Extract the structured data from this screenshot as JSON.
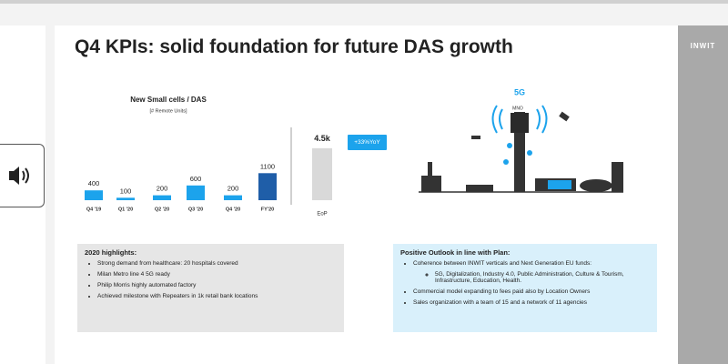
{
  "slide": {
    "title": "Q4 KPIs: solid foundation for future DAS growth",
    "brand": "INWIT"
  },
  "chart": {
    "type": "bar",
    "title": "New Small cells / DAS",
    "subtitle": "[# Remote Units]",
    "categories": [
      "Q4 '19",
      "Q1 '20",
      "Q2 '20",
      "Q3 '20",
      "Q4 '20",
      "FY'20"
    ],
    "values": [
      400,
      100,
      200,
      600,
      200,
      1100
    ],
    "colors": [
      "#1ca3ec",
      "#1ca3ec",
      "#1ca3ec",
      "#1ca3ec",
      "#1ca3ec",
      "#1f5ea8"
    ]
  },
  "eop": {
    "label": "EoP",
    "value": 4500,
    "value_label": "4.5k",
    "color": "#d9d9d9",
    "badge": "+33%YoY"
  },
  "illustration": {
    "label": "5G",
    "sublabel": "MNO"
  },
  "highlights": {
    "title": "2020 highlights:",
    "items": [
      "Strong demand from healthcare: 20 hospitals covered",
      "Milan Metro line 4 5G ready",
      "Philip Morris highly automated factory",
      "Achieved milestone with Repeaters in 1k retail bank locations"
    ]
  },
  "outlook": {
    "title": "Positive Outlook in line with Plan:",
    "items": [
      {
        "text": "Coherence between INWIT verticals and Next Generation EU funds:",
        "subitems": [
          "5G, Digitalization, Industry 4.0, Public Administration, Culture & Tourism, Infrastructure, Education, Health."
        ]
      },
      {
        "text": "Commercial model expanding to fees paid also by Location Owners"
      },
      {
        "text": "Sales organization with a team of 15 and a network of 11 agencies"
      }
    ]
  }
}
